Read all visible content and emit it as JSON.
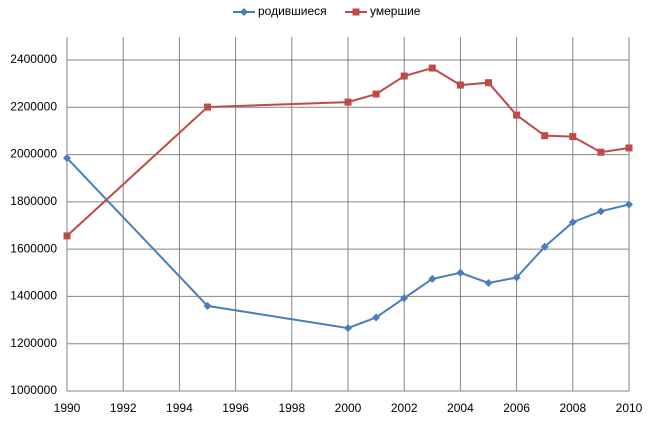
{
  "chart_data": {
    "type": "line",
    "x": [
      1990,
      1995,
      2000,
      2001,
      2002,
      2003,
      2004,
      2005,
      2006,
      2007,
      2008,
      2009,
      2010
    ],
    "series": [
      {
        "name": "родившиеся",
        "color": "#4a7ebb",
        "marker": "diamond",
        "values": [
          1985000,
          1360000,
          1266000,
          1311000,
          1393000,
          1474000,
          1500000,
          1457000,
          1480000,
          1610000,
          1714000,
          1760000,
          1789000
        ]
      },
      {
        "name": "умершие",
        "color": "#be4b48",
        "marker": "square",
        "values": [
          1656000,
          2201000,
          2222000,
          2256000,
          2332000,
          2366000,
          2294000,
          2304000,
          2167000,
          2080000,
          2076000,
          2010000,
          2028000
        ]
      }
    ],
    "xlim": [
      1990,
      2010
    ],
    "xticks": [
      1990,
      1992,
      1994,
      1996,
      1998,
      2000,
      2002,
      2004,
      2006,
      2008,
      2010
    ],
    "ylim": [
      1000000,
      2400000
    ],
    "yticks": [
      1000000,
      1200000,
      1400000,
      1600000,
      1800000,
      2000000,
      2200000,
      2400000
    ],
    "grid": true,
    "legend": "top"
  }
}
